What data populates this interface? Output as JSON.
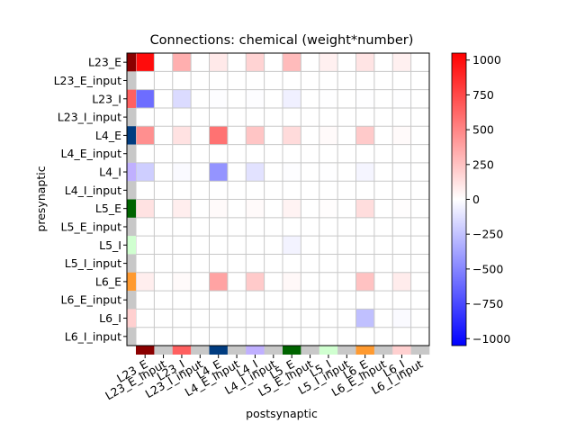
{
  "chart_data": {
    "type": "heatmap",
    "title": "Connections: chemical (weight*number)",
    "xlabel": "postsynaptic",
    "ylabel": "presynaptic",
    "rows": [
      "L23_E",
      "L23_E_input",
      "L23_I",
      "L23_I_input",
      "L4_E",
      "L4_E_input",
      "L4_I",
      "L4_I_input",
      "L5_E",
      "L5_E_input",
      "L5_I",
      "L5_I_input",
      "L6_E",
      "L6_E_input",
      "L6_I",
      "L6_I_input"
    ],
    "columns": [
      "L23_E",
      "L23_E_input",
      "L23_I",
      "L23_I_input",
      "L4_E",
      "L4_E_input",
      "L4_I",
      "L4_I_input",
      "L5_E",
      "L5_E_input",
      "L5_I",
      "L5_I_input",
      "L6_E",
      "L6_E_input",
      "L6_I",
      "L6_I_input"
    ],
    "values": [
      [
        1000,
        0,
        330,
        0,
        90,
        0,
        180,
        0,
        280,
        0,
        60,
        0,
        110,
        0,
        60,
        0
      ],
      [
        0,
        0,
        0,
        0,
        0,
        0,
        0,
        0,
        0,
        0,
        0,
        0,
        0,
        0,
        0,
        0
      ],
      [
        -600,
        0,
        -150,
        0,
        -10,
        0,
        -10,
        0,
        -60,
        0,
        -5,
        0,
        -5,
        0,
        -5,
        0
      ],
      [
        0,
        0,
        0,
        0,
        0,
        0,
        0,
        0,
        0,
        0,
        0,
        0,
        0,
        0,
        0,
        0
      ],
      [
        460,
        0,
        120,
        0,
        580,
        0,
        240,
        0,
        150,
        0,
        20,
        0,
        220,
        0,
        20,
        0
      ],
      [
        0,
        0,
        0,
        0,
        0,
        0,
        0,
        0,
        0,
        0,
        0,
        0,
        0,
        0,
        0,
        0
      ],
      [
        -200,
        0,
        -20,
        0,
        -440,
        0,
        -120,
        0,
        -10,
        0,
        -5,
        0,
        -40,
        0,
        -5,
        0
      ],
      [
        0,
        0,
        0,
        0,
        0,
        0,
        0,
        0,
        0,
        0,
        0,
        0,
        0,
        0,
        0,
        0
      ],
      [
        120,
        0,
        70,
        0,
        20,
        0,
        20,
        0,
        50,
        0,
        10,
        0,
        140,
        0,
        10,
        0
      ],
      [
        0,
        0,
        0,
        0,
        0,
        0,
        0,
        0,
        0,
        0,
        0,
        0,
        0,
        0,
        0,
        0
      ],
      [
        0,
        0,
        0,
        0,
        0,
        0,
        0,
        0,
        -50,
        0,
        0,
        0,
        0,
        0,
        0,
        0
      ],
      [
        0,
        0,
        0,
        0,
        0,
        0,
        0,
        0,
        0,
        0,
        0,
        0,
        0,
        0,
        0,
        0
      ],
      [
        70,
        0,
        20,
        0,
        380,
        0,
        220,
        0,
        30,
        0,
        0,
        0,
        250,
        0,
        80,
        0
      ],
      [
        0,
        0,
        0,
        0,
        0,
        0,
        0,
        0,
        0,
        0,
        0,
        0,
        0,
        0,
        0,
        0
      ],
      [
        0,
        0,
        0,
        0,
        0,
        0,
        0,
        0,
        0,
        0,
        0,
        0,
        -260,
        0,
        -20,
        0
      ],
      [
        0,
        0,
        0,
        0,
        0,
        0,
        0,
        0,
        0,
        0,
        0,
        0,
        0,
        0,
        0,
        0
      ]
    ],
    "population_colors": [
      "#8b0000",
      "#c8c8c8",
      "#ff6060",
      "#c8c8c8",
      "#003c80",
      "#c8c8c8",
      "#c0b0ff",
      "#c8c8c8",
      "#006400",
      "#c8c8c8",
      "#d0ffd0",
      "#c8c8c8",
      "#ff9a30",
      "#c8c8c8",
      "#ffd0d0",
      "#c8c8c8"
    ],
    "colorbar": {
      "range": [
        -1050,
        1050
      ],
      "ticks": [
        1000,
        750,
        500,
        250,
        0,
        -250,
        -500,
        -750,
        -1000
      ],
      "colormap": "bwr"
    }
  }
}
